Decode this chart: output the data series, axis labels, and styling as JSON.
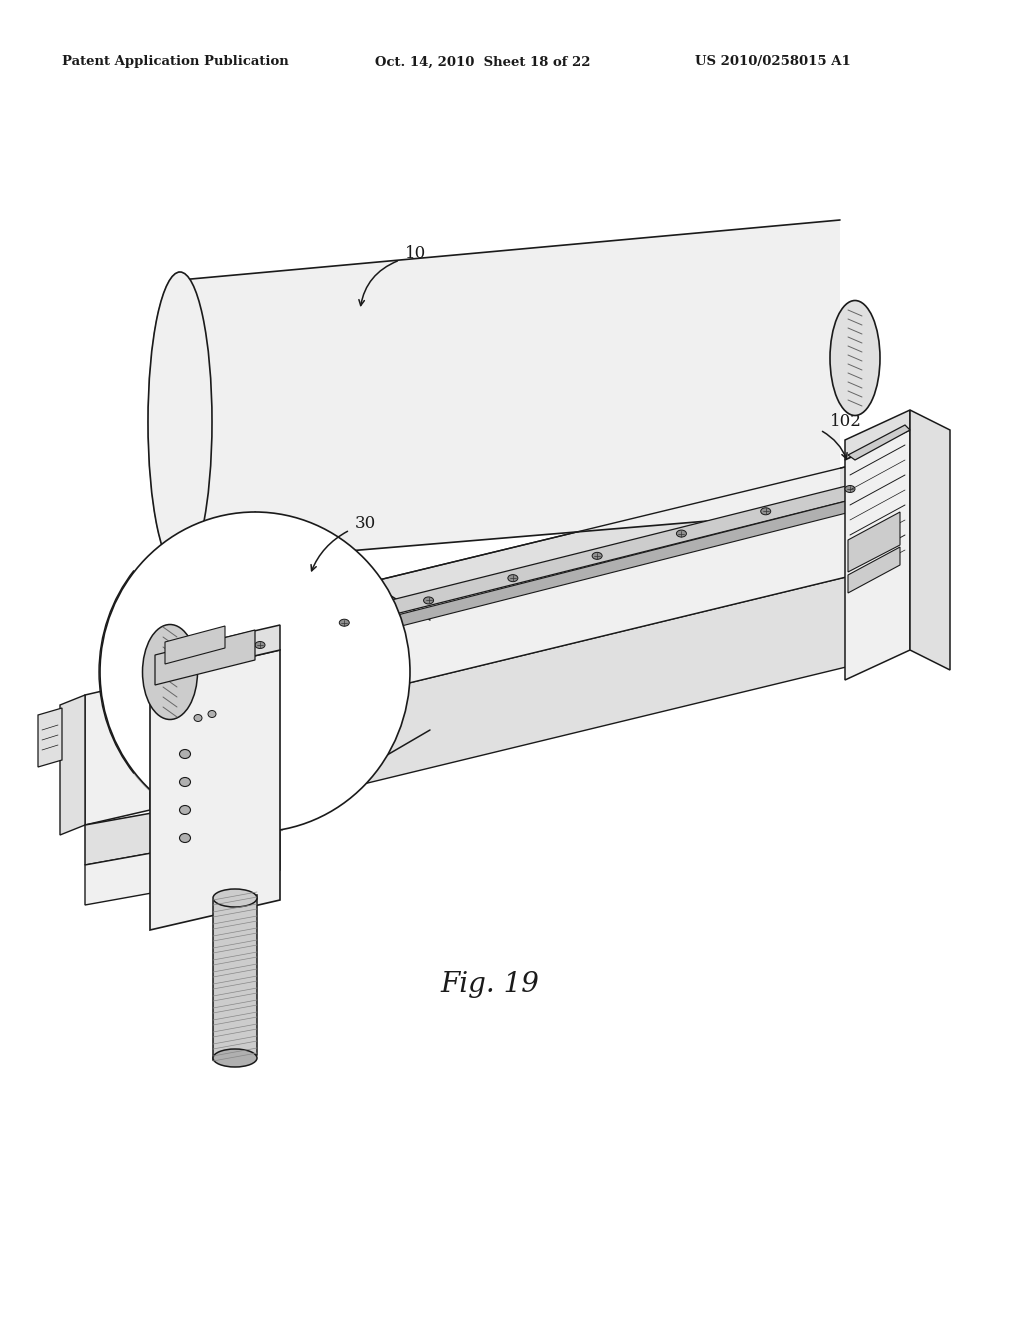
{
  "header_left": "Patent Application Publication",
  "header_center": "Oct. 14, 2010  Sheet 18 of 22",
  "header_right": "US 2010/0258015 A1",
  "fig_label": "Fig. 19",
  "label_10": "10",
  "label_30": "30",
  "label_102": "102",
  "bg": "#ffffff",
  "lc": "#1a1a1a",
  "g1": "#f0f0f0",
  "g2": "#e0e0e0",
  "g3": "#cccccc",
  "g4": "#b0b0b0",
  "g5": "#909090"
}
